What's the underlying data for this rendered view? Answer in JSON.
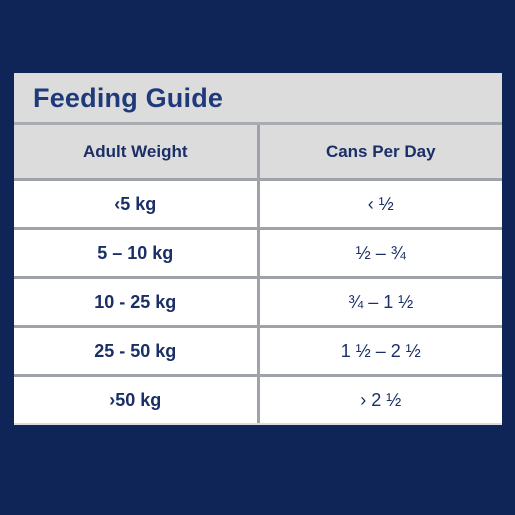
{
  "guide": {
    "title": "Feeding Guide",
    "headers": {
      "weight": "Adult Weight",
      "cans": "Cans Per Day"
    },
    "rows": [
      {
        "weight": "‹5 kg",
        "cans": "‹ ½"
      },
      {
        "weight": "5 – 10 kg",
        "cans": "½ – ¾"
      },
      {
        "weight": "10 - 25 kg",
        "cans": "¾ – 1 ½"
      },
      {
        "weight": "25 - 50 kg",
        "cans": "1 ½ – 2 ½"
      },
      {
        "weight": "›50 kg",
        "cans": "› 2 ½"
      }
    ]
  },
  "colors": {
    "background": "#0f2557",
    "panel": "#dcdcdc",
    "text": "#1a2f66",
    "grid": "#9fa3a9"
  }
}
